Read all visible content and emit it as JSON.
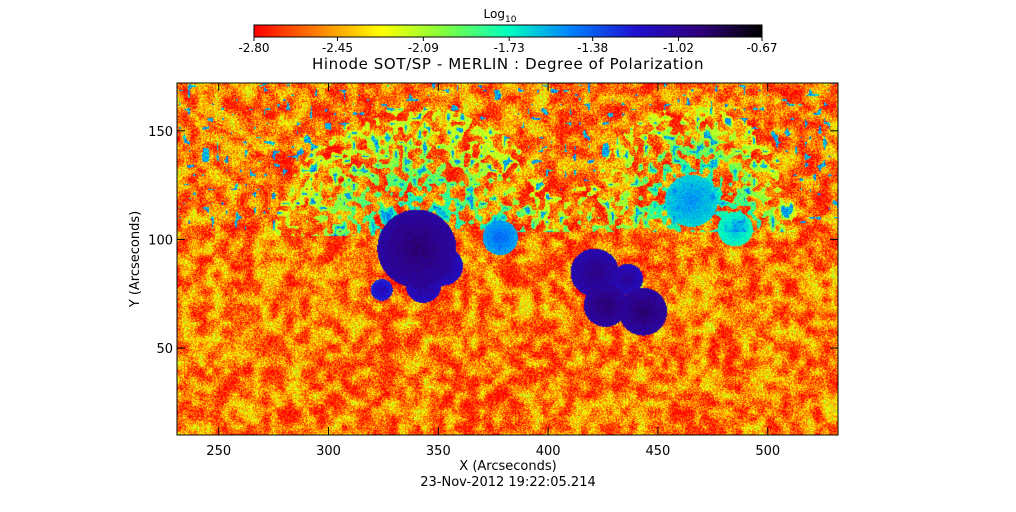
{
  "chart_data": {
    "type": "heatmap",
    "title": "Hinode SOT/SP - MERLIN : Degree of Polarization",
    "xlabel": "X (Arcseconds)",
    "ylabel": "Y (Arcseconds)",
    "timestamp": "23-Nov-2012 19:22:05.214",
    "xlim": [
      231,
      532
    ],
    "ylim": [
      10,
      172
    ],
    "x_ticks": [
      250,
      300,
      350,
      400,
      450,
      500
    ],
    "y_ticks": [
      50,
      100,
      150
    ],
    "x_tick_labels": [
      "250",
      "300",
      "350",
      "400",
      "450",
      "500"
    ],
    "y_tick_labels": [
      "50",
      "100",
      "150"
    ],
    "colorbar": {
      "title_base": "Log",
      "title_sub": "10",
      "range": [
        -2.8,
        -0.67
      ],
      "tick_values": [
        -2.8,
        -2.45,
        -2.09,
        -1.73,
        -1.38,
        -1.02,
        -0.67
      ],
      "tick_labels": [
        "-2.80",
        "-2.45",
        "-2.09",
        "-1.73",
        "-1.38",
        "-1.02",
        "-0.67"
      ],
      "colormap": [
        "#ff0000",
        "#ff8000",
        "#ffff00",
        "#80ff40",
        "#00ffc0",
        "#0080ff",
        "#2010d0",
        "#300080",
        "#000000"
      ]
    },
    "features": [
      {
        "x": 340,
        "y": 96,
        "r": 18,
        "value": -0.9
      },
      {
        "x": 352,
        "y": 88,
        "r": 9,
        "value": -1.0
      },
      {
        "x": 343,
        "y": 79,
        "r": 8,
        "value": -1.0
      },
      {
        "x": 324,
        "y": 77,
        "r": 5,
        "value": -1.1
      },
      {
        "x": 378,
        "y": 101,
        "r": 8,
        "value": -1.4
      },
      {
        "x": 421,
        "y": 85,
        "r": 11,
        "value": -0.95
      },
      {
        "x": 426,
        "y": 70,
        "r": 10,
        "value": -0.9
      },
      {
        "x": 443,
        "y": 67,
        "r": 11,
        "value": -0.9
      },
      {
        "x": 436,
        "y": 82,
        "r": 7,
        "value": -1.0
      },
      {
        "x": 465,
        "y": 118,
        "r": 12,
        "value": -1.5
      },
      {
        "x": 485,
        "y": 105,
        "r": 8,
        "value": -1.6
      }
    ]
  }
}
